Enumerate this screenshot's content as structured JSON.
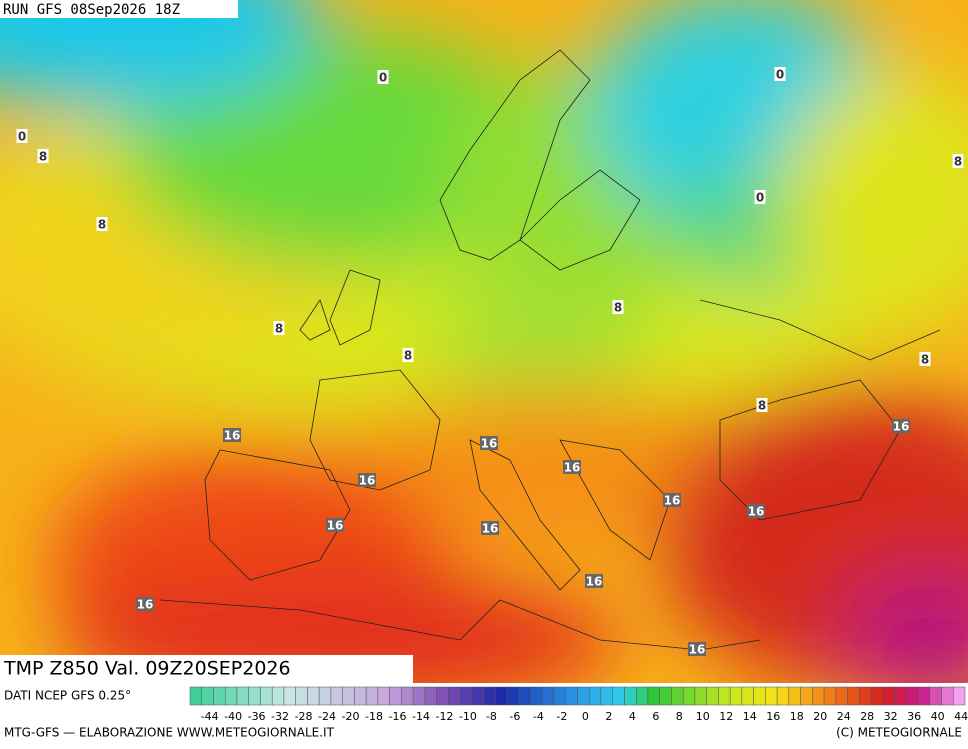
{
  "header": {
    "run": "RUN GFS 08Sep2026 18Z"
  },
  "map": {
    "title": "TMP Z850 Val. 09Z20SEP2026",
    "contour_labels": [
      "0",
      "0",
      "0",
      "0",
      "8",
      "8",
      "8",
      "8",
      "8",
      "8",
      "8",
      "8",
      "16",
      "16",
      "16",
      "16",
      "16",
      "16",
      "16",
      "16",
      "16",
      "16",
      "16",
      "16"
    ]
  },
  "legend": {
    "source": "DATI NCEP GFS 0.25°",
    "ticks": [
      -44,
      -40,
      -36,
      -32,
      -28,
      -24,
      -20,
      -18,
      -16,
      -14,
      -12,
      -10,
      -8,
      -6,
      -4,
      -2,
      0,
      2,
      4,
      6,
      8,
      10,
      12,
      14,
      16,
      18,
      20,
      24,
      28,
      32,
      36,
      40,
      44
    ]
  },
  "footer": {
    "left": "MTG-GFS — ELABORAZIONE WWW.METEOGIORNALE.IT",
    "right": "(C) METEOGIORNALE"
  }
}
